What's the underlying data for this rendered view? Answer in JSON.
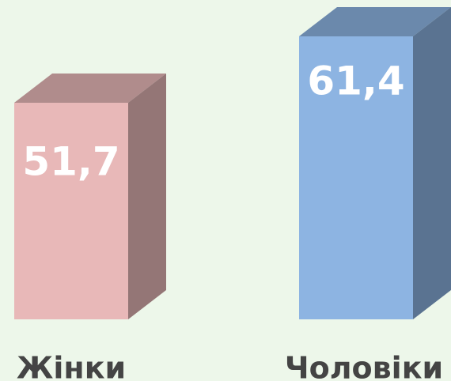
{
  "chart_data": {
    "type": "bar3d",
    "categories": [
      "Жінки",
      "Чоловіки"
    ],
    "values": [
      51.7,
      61.4
    ],
    "value_labels": [
      "51,7",
      "61,4"
    ],
    "colors": [
      "#e8b8b8",
      "#8db4e2"
    ]
  }
}
